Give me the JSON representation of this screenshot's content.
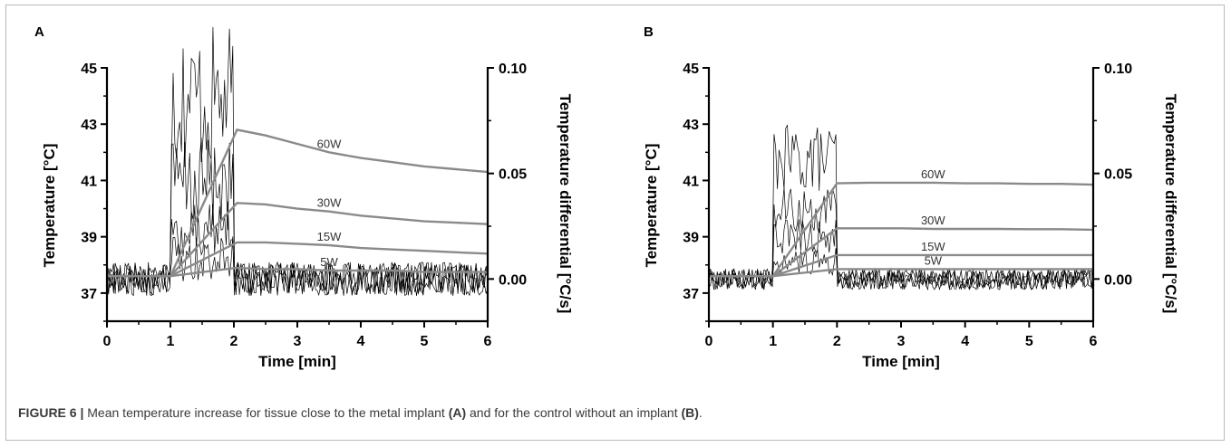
{
  "caption": {
    "label": "FIGURE 6 |",
    "text_1": " Mean temperature increase for tissue close to the metal implant ",
    "ref_a": "(A)",
    "text_2": " and for the control without an implant ",
    "ref_b": "(B)",
    "text_3": "."
  },
  "colors": {
    "mean_line": "#8a8a8a",
    "differential_line": "#000000",
    "axis": "#000000",
    "text": "#000000"
  },
  "chart_data": [
    {
      "panel": "A",
      "type": "line",
      "xlabel": "Time [min]",
      "ylabel_left": "Temperature [°C]",
      "ylabel_right": "Temperature differential [°C/s]",
      "xlim": [
        0,
        6
      ],
      "ylim_left": [
        36,
        45
      ],
      "ylim_right": [
        -0.02,
        0.1
      ],
      "xticks": [
        "0",
        "1",
        "2",
        "3",
        "4",
        "5",
        "6"
      ],
      "yticks_left": [
        "37",
        "39",
        "41",
        "43",
        "45"
      ],
      "yticks_right": [
        "0.00",
        "0.05",
        "0.10"
      ],
      "series": [
        {
          "name": "60W",
          "axis": "left",
          "x": [
            0,
            1,
            2.05,
            2.5,
            3,
            3.5,
            4,
            4.5,
            5,
            5.5,
            6
          ],
          "y": [
            37.6,
            37.6,
            42.8,
            42.6,
            42.3,
            42.0,
            41.8,
            41.65,
            41.5,
            41.4,
            41.3
          ]
        },
        {
          "name": "30W",
          "axis": "left",
          "x": [
            0,
            1,
            2.05,
            2.5,
            3,
            3.5,
            4,
            4.5,
            5,
            5.5,
            6
          ],
          "y": [
            37.6,
            37.6,
            40.2,
            40.15,
            40.0,
            39.9,
            39.75,
            39.65,
            39.55,
            39.5,
            39.45
          ]
        },
        {
          "name": "15W",
          "axis": "left",
          "x": [
            0,
            1,
            2.05,
            2.5,
            3,
            3.5,
            4,
            4.5,
            5,
            5.5,
            6
          ],
          "y": [
            37.6,
            37.6,
            38.8,
            38.8,
            38.75,
            38.7,
            38.6,
            38.55,
            38.5,
            38.45,
            38.4
          ]
        },
        {
          "name": "5W",
          "axis": "left",
          "x": [
            0,
            1,
            2.05,
            2.5,
            3,
            3.5,
            4,
            4.5,
            5,
            5.5,
            6
          ],
          "y": [
            37.6,
            37.6,
            37.9,
            37.85,
            37.85,
            37.8,
            37.8,
            37.8,
            37.75,
            37.75,
            37.75
          ]
        }
      ],
      "differential_levels": [
        0.085,
        0.045,
        0.025,
        0.01
      ],
      "differential_window": [
        1,
        2
      ],
      "noise_amplitude": 0.008
    },
    {
      "panel": "B",
      "type": "line",
      "xlabel": "Time [min]",
      "ylabel_left": "Temperature [°C]",
      "ylabel_right": "Temperature differential [°C/s]",
      "xlim": [
        0,
        6
      ],
      "ylim_left": [
        36,
        45
      ],
      "ylim_right": [
        -0.02,
        0.1
      ],
      "xticks": [
        "0",
        "1",
        "2",
        "3",
        "4",
        "5",
        "6"
      ],
      "yticks_left": [
        "37",
        "39",
        "41",
        "43",
        "45"
      ],
      "yticks_right": [
        "0.00",
        "0.05",
        "0.10"
      ],
      "series": [
        {
          "name": "60W",
          "axis": "left",
          "x": [
            0,
            1,
            2,
            2.5,
            3,
            3.5,
            4,
            4.5,
            5,
            5.5,
            6
          ],
          "y": [
            37.6,
            37.6,
            40.9,
            40.92,
            40.92,
            40.92,
            40.9,
            40.9,
            40.88,
            40.88,
            40.85
          ]
        },
        {
          "name": "30W",
          "axis": "left",
          "x": [
            0,
            1,
            2,
            2.5,
            3,
            3.5,
            4,
            4.5,
            5,
            5.5,
            6
          ],
          "y": [
            37.6,
            37.6,
            39.3,
            39.3,
            39.3,
            39.28,
            39.28,
            39.28,
            39.27,
            39.27,
            39.25
          ]
        },
        {
          "name": "15W",
          "axis": "left",
          "x": [
            0,
            1,
            2,
            2.5,
            3,
            3.5,
            4,
            4.5,
            5,
            5.5,
            6
          ],
          "y": [
            37.6,
            37.6,
            38.35,
            38.35,
            38.35,
            38.35,
            38.35,
            38.35,
            38.35,
            38.35,
            38.35
          ]
        },
        {
          "name": "5W",
          "axis": "left",
          "x": [
            0,
            1,
            2,
            2.5,
            3,
            3.5,
            4,
            4.5,
            5,
            5.5,
            6
          ],
          "y": [
            37.6,
            37.6,
            37.85,
            37.85,
            37.85,
            37.85,
            37.85,
            37.85,
            37.85,
            37.85,
            37.85
          ]
        }
      ],
      "differential_levels": [
        0.057,
        0.032,
        0.02,
        0.008
      ],
      "differential_window": [
        1,
        2
      ],
      "noise_amplitude": 0.005
    }
  ]
}
